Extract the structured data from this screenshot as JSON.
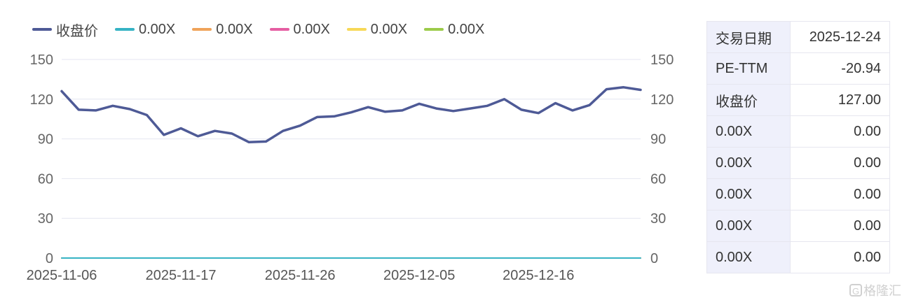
{
  "legend": [
    {
      "label": "收盘价",
      "color": "#4e5a96"
    },
    {
      "label": "0.00X",
      "color": "#36b3c4"
    },
    {
      "label": "0.00X",
      "color": "#f0a35a"
    },
    {
      "label": "0.00X",
      "color": "#e55ea2"
    },
    {
      "label": "0.00X",
      "color": "#f7d857"
    },
    {
      "label": "0.00X",
      "color": "#9ccb4a"
    }
  ],
  "info_table": [
    {
      "key": "交易日期",
      "value": "2025-12-24"
    },
    {
      "key": "PE-TTM",
      "value": "-20.94"
    },
    {
      "key": "收盘价",
      "value": "127.00"
    },
    {
      "key": "0.00X",
      "value": "0.00"
    },
    {
      "key": "0.00X",
      "value": "0.00"
    },
    {
      "key": "0.00X",
      "value": "0.00"
    },
    {
      "key": "0.00X",
      "value": "0.00"
    },
    {
      "key": "0.00X",
      "value": "0.00"
    }
  ],
  "watermark": "格隆汇",
  "chart_data": {
    "type": "line",
    "x_tick_labels": [
      "2025-11-06",
      "2025-11-17",
      "2025-11-26",
      "2025-12-05",
      "2025-12-16"
    ],
    "x_tick_indices": [
      0,
      7,
      14,
      21,
      28
    ],
    "ylim": [
      0,
      150
    ],
    "yticks": [
      0,
      30,
      60,
      90,
      120,
      150
    ],
    "grid": true,
    "legend_position": "top-left",
    "series": [
      {
        "name": "收盘价",
        "color": "#4e5a96",
        "values": [
          126,
          112,
          111.5,
          115,
          112.5,
          108,
          93,
          98,
          92,
          96,
          94,
          87.5,
          88,
          96,
          100,
          106.5,
          107,
          110,
          114,
          110.5,
          111.5,
          116.5,
          113,
          111,
          113,
          115,
          120,
          112,
          109.5,
          117,
          111.5,
          115.5,
          127.5,
          129,
          127
        ]
      },
      {
        "name": "0.00X",
        "color": "#36b3c4",
        "values": "zero"
      },
      {
        "name": "0.00X",
        "color": "#f0a35a",
        "values": "zero"
      },
      {
        "name": "0.00X",
        "color": "#e55ea2",
        "values": "zero"
      },
      {
        "name": "0.00X",
        "color": "#f7d857",
        "values": "zero"
      },
      {
        "name": "0.00X",
        "color": "#9ccb4a",
        "values": "zero"
      }
    ]
  }
}
